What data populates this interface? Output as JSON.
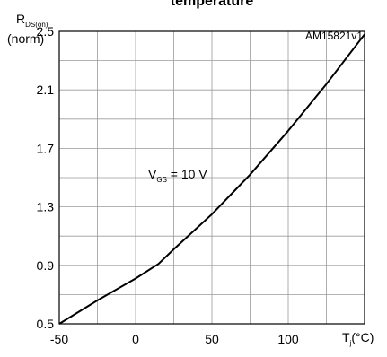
{
  "chart_data": {
    "type": "line",
    "title": "temperature",
    "ref_code": "AM15821v1",
    "ylabel": {
      "main": "R",
      "sub": "DS(on)",
      "unit": "(norm)"
    },
    "xlabel": {
      "main": "T",
      "sub": "j",
      "unit": "(°C)"
    },
    "annotation": {
      "main": "V",
      "sub": "GS",
      "text": " = 10 V"
    },
    "xlim": [
      -50,
      150
    ],
    "ylim": [
      0.5,
      2.5
    ],
    "x_ticks": [
      -50,
      0,
      50,
      100
    ],
    "x_tick_labels": [
      "-50",
      "0",
      "50",
      "100"
    ],
    "y_ticks": [
      0.5,
      0.9,
      1.3,
      1.7,
      2.1,
      2.5
    ],
    "y_tick_labels": [
      "0.5",
      "0.9",
      "1.3",
      "1.7",
      "2.1",
      "2.5"
    ],
    "grid": true,
    "series": [
      {
        "x": [
          -50,
          -25,
          0,
          15,
          25,
          50,
          75,
          100,
          125,
          150
        ],
        "y": [
          0.5,
          0.66,
          0.81,
          0.91,
          1.01,
          1.25,
          1.52,
          1.82,
          2.14,
          2.48
        ]
      }
    ]
  }
}
